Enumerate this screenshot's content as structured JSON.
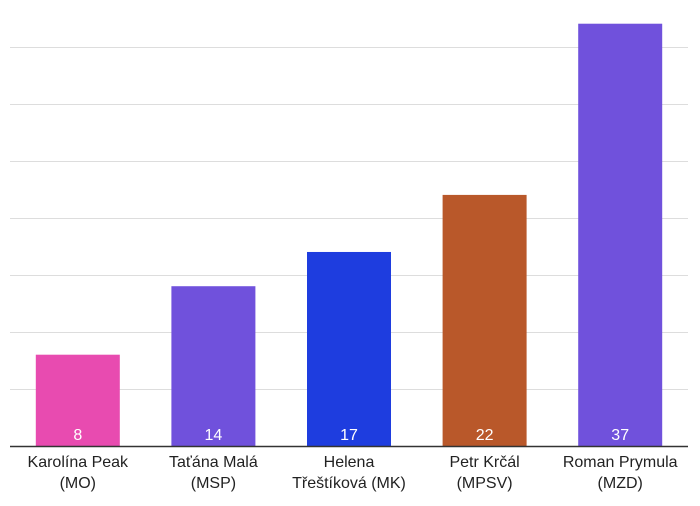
{
  "chart_data": {
    "type": "bar",
    "title": "",
    "xlabel": "",
    "ylabel": "",
    "categories": [
      [
        "Karolína Peak",
        "(MO)"
      ],
      [
        "Taťána Malá",
        "(MSP)"
      ],
      [
        "Helena",
        "Třeštíková (MK)"
      ],
      [
        "Petr Krčál",
        "(MPSV)"
      ],
      [
        "Roman Prymula",
        "(MZD)"
      ]
    ],
    "values": [
      8,
      14,
      17,
      22,
      37
    ],
    "colors": [
      "#e84bb0",
      "#7051dc",
      "#1e3ddf",
      "#b9582a",
      "#7051dc"
    ],
    "ylim": [
      0,
      37.5
    ],
    "grid": true,
    "legend": "none",
    "axis_color": "#333333",
    "grid_color": "#dddddd"
  }
}
